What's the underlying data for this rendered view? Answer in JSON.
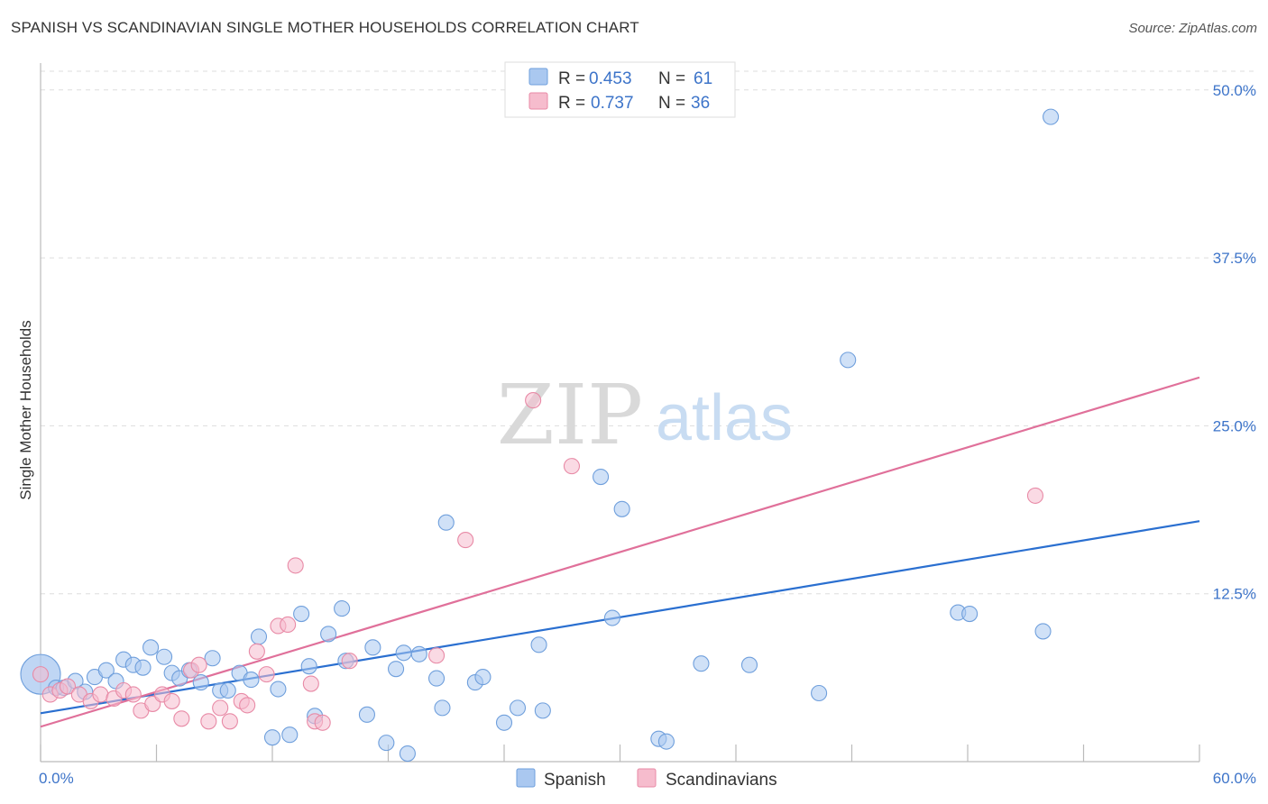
{
  "title": "SPANISH VS SCANDINAVIAN SINGLE MOTHER HOUSEHOLDS CORRELATION CHART",
  "source": "Source: ZipAtlas.com",
  "watermark": {
    "zip": "ZIP",
    "atlas": "atlas"
  },
  "colors": {
    "spanish_fill": "#aac8f0",
    "spanish_stroke": "#6f9fdc",
    "spanish_line": "#2a6fd0",
    "scand_fill": "#f6bccd",
    "scand_stroke": "#e88aa6",
    "scand_line": "#e0709a",
    "axis_text": "#3d74c9",
    "grid": "#dddddd"
  },
  "legend": {
    "r_label": "R =",
    "n_label": "N =",
    "rows": [
      {
        "series": "spanish",
        "r": "0.453",
        "n": "61"
      },
      {
        "series": "scand",
        "r": "0.737",
        "n": "36"
      }
    ]
  },
  "bottom_legend": [
    "Spanish",
    "Scandinavians"
  ],
  "chart_data": {
    "type": "scatter",
    "title": "SPANISH VS SCANDINAVIAN SINGLE MOTHER HOUSEHOLDS CORRELATION CHART",
    "xlabel": "",
    "ylabel": "Single Mother Households",
    "xlim": [
      0,
      60
    ],
    "ylim": [
      0,
      52
    ],
    "x_tick_labels": [
      {
        "value": 0,
        "label": "0.0%"
      },
      {
        "value": 60,
        "label": "60.0%"
      }
    ],
    "y_tick_labels": [
      {
        "value": 12.5,
        "label": "12.5%"
      },
      {
        "value": 25,
        "label": "25.0%"
      },
      {
        "value": 37.5,
        "label": "37.5%"
      },
      {
        "value": 50,
        "label": "50.0%"
      }
    ],
    "x_minor_ticks": [
      0,
      6,
      12,
      18,
      24,
      30,
      36,
      42,
      48,
      54,
      60
    ],
    "grid": true,
    "series": [
      {
        "name": "Spanish",
        "key": "spanish",
        "trend": {
          "x": [
            0,
            60
          ],
          "y": [
            3.6,
            17.9
          ]
        },
        "points": [
          [
            0.0,
            6.5,
            22
          ],
          [
            0.8,
            5.5,
            0
          ],
          [
            1.2,
            5.5,
            0
          ],
          [
            1.8,
            6.0,
            0
          ],
          [
            2.3,
            5.2,
            0
          ],
          [
            2.8,
            6.3,
            0
          ],
          [
            3.4,
            6.8,
            0
          ],
          [
            3.9,
            6.0,
            0
          ],
          [
            4.3,
            7.6,
            0
          ],
          [
            4.8,
            7.2,
            0
          ],
          [
            5.3,
            7.0,
            0
          ],
          [
            5.7,
            8.5,
            0
          ],
          [
            6.4,
            7.8,
            0
          ],
          [
            6.8,
            6.6,
            0
          ],
          [
            7.2,
            6.2,
            0
          ],
          [
            7.7,
            6.8,
            0
          ],
          [
            8.3,
            5.9,
            0
          ],
          [
            8.9,
            7.7,
            0
          ],
          [
            9.3,
            5.3,
            0
          ],
          [
            9.7,
            5.3,
            0
          ],
          [
            10.3,
            6.6,
            0
          ],
          [
            10.9,
            6.1,
            0
          ],
          [
            11.3,
            9.3,
            0
          ],
          [
            12.0,
            1.8,
            0
          ],
          [
            12.3,
            5.4,
            0
          ],
          [
            12.9,
            2.0,
            0
          ],
          [
            13.5,
            11.0,
            0
          ],
          [
            13.9,
            7.1,
            0
          ],
          [
            14.2,
            3.4,
            0
          ],
          [
            14.9,
            9.5,
            0
          ],
          [
            15.6,
            11.4,
            0
          ],
          [
            15.8,
            7.5,
            0
          ],
          [
            16.9,
            3.5,
            0
          ],
          [
            17.2,
            8.5,
            0
          ],
          [
            17.9,
            1.4,
            0
          ],
          [
            18.4,
            6.9,
            0
          ],
          [
            18.8,
            8.1,
            0
          ],
          [
            19.0,
            0.6,
            0
          ],
          [
            19.6,
            8.0,
            0
          ],
          [
            20.5,
            6.2,
            0
          ],
          [
            20.8,
            4.0,
            0
          ],
          [
            21.0,
            17.8,
            0
          ],
          [
            22.5,
            5.9,
            0
          ],
          [
            22.9,
            6.3,
            0
          ],
          [
            24.0,
            2.9,
            0
          ],
          [
            24.7,
            4.0,
            0
          ],
          [
            25.8,
            8.7,
            0
          ],
          [
            26.0,
            3.8,
            0
          ],
          [
            29.0,
            21.2,
            0
          ],
          [
            29.6,
            10.7,
            0
          ],
          [
            30.1,
            18.8,
            0
          ],
          [
            32.0,
            1.7,
            0
          ],
          [
            32.4,
            1.5,
            0
          ],
          [
            34.2,
            7.3,
            0
          ],
          [
            36.7,
            7.2,
            0
          ],
          [
            40.3,
            5.1,
            0
          ],
          [
            41.8,
            29.9,
            0
          ],
          [
            47.5,
            11.1,
            0
          ],
          [
            48.1,
            11.0,
            0
          ],
          [
            51.9,
            9.7,
            0
          ],
          [
            52.3,
            48.0,
            0
          ]
        ]
      },
      {
        "name": "Scandinavians",
        "key": "scand",
        "trend": {
          "x": [
            0,
            60
          ],
          "y": [
            2.6,
            28.6
          ]
        },
        "points": [
          [
            0.5,
            5.0,
            0
          ],
          [
            1.0,
            5.3,
            0
          ],
          [
            1.4,
            5.6,
            0
          ],
          [
            2.0,
            5.0,
            0
          ],
          [
            2.6,
            4.5,
            0
          ],
          [
            3.1,
            5.0,
            0
          ],
          [
            3.8,
            4.7,
            0
          ],
          [
            4.3,
            5.3,
            0
          ],
          [
            4.8,
            5.0,
            0
          ],
          [
            5.2,
            3.8,
            0
          ],
          [
            5.8,
            4.3,
            0
          ],
          [
            6.3,
            5.0,
            0
          ],
          [
            6.8,
            4.5,
            0
          ],
          [
            7.3,
            3.2,
            0
          ],
          [
            7.8,
            6.8,
            0
          ],
          [
            8.2,
            7.2,
            0
          ],
          [
            8.7,
            3.0,
            0
          ],
          [
            9.3,
            4.0,
            0
          ],
          [
            9.8,
            3.0,
            0
          ],
          [
            10.4,
            4.5,
            0
          ],
          [
            10.7,
            4.2,
            0
          ],
          [
            11.2,
            8.2,
            0
          ],
          [
            11.7,
            6.5,
            0
          ],
          [
            12.3,
            10.1,
            0
          ],
          [
            12.8,
            10.2,
            0
          ],
          [
            13.2,
            14.6,
            0
          ],
          [
            14.0,
            5.8,
            0
          ],
          [
            14.2,
            3.0,
            0
          ],
          [
            14.6,
            2.9,
            0
          ],
          [
            16.0,
            7.5,
            0
          ],
          [
            20.5,
            7.9,
            0
          ],
          [
            22.0,
            16.5,
            0
          ],
          [
            25.5,
            26.9,
            0
          ],
          [
            27.5,
            22.0,
            0
          ],
          [
            51.5,
            19.8,
            0
          ],
          [
            0.0,
            6.5,
            0
          ]
        ]
      }
    ]
  }
}
